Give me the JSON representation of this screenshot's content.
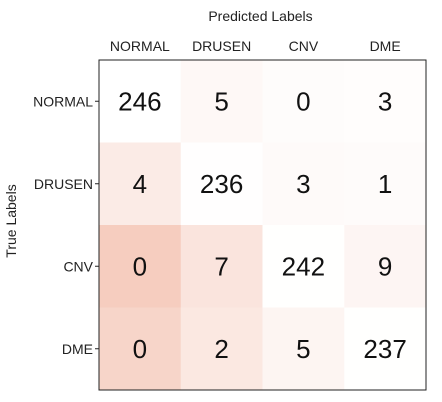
{
  "chart_data": {
    "type": "heatmap",
    "title": "",
    "xlabel": "Predicted Labels",
    "ylabel": "True Labels",
    "x_categories": [
      "NORMAL",
      "DRUSEN",
      "CNV",
      "DME"
    ],
    "y_categories": [
      "NORMAL",
      "DRUSEN",
      "CNV",
      "DME"
    ],
    "values": [
      [
        246,
        5,
        0,
        3
      ],
      [
        4,
        236,
        3,
        1
      ],
      [
        0,
        7,
        242,
        9
      ],
      [
        0,
        2,
        5,
        237
      ]
    ],
    "colormap": {
      "white": "#ffffff",
      "pink": "#f6cdbf"
    }
  }
}
